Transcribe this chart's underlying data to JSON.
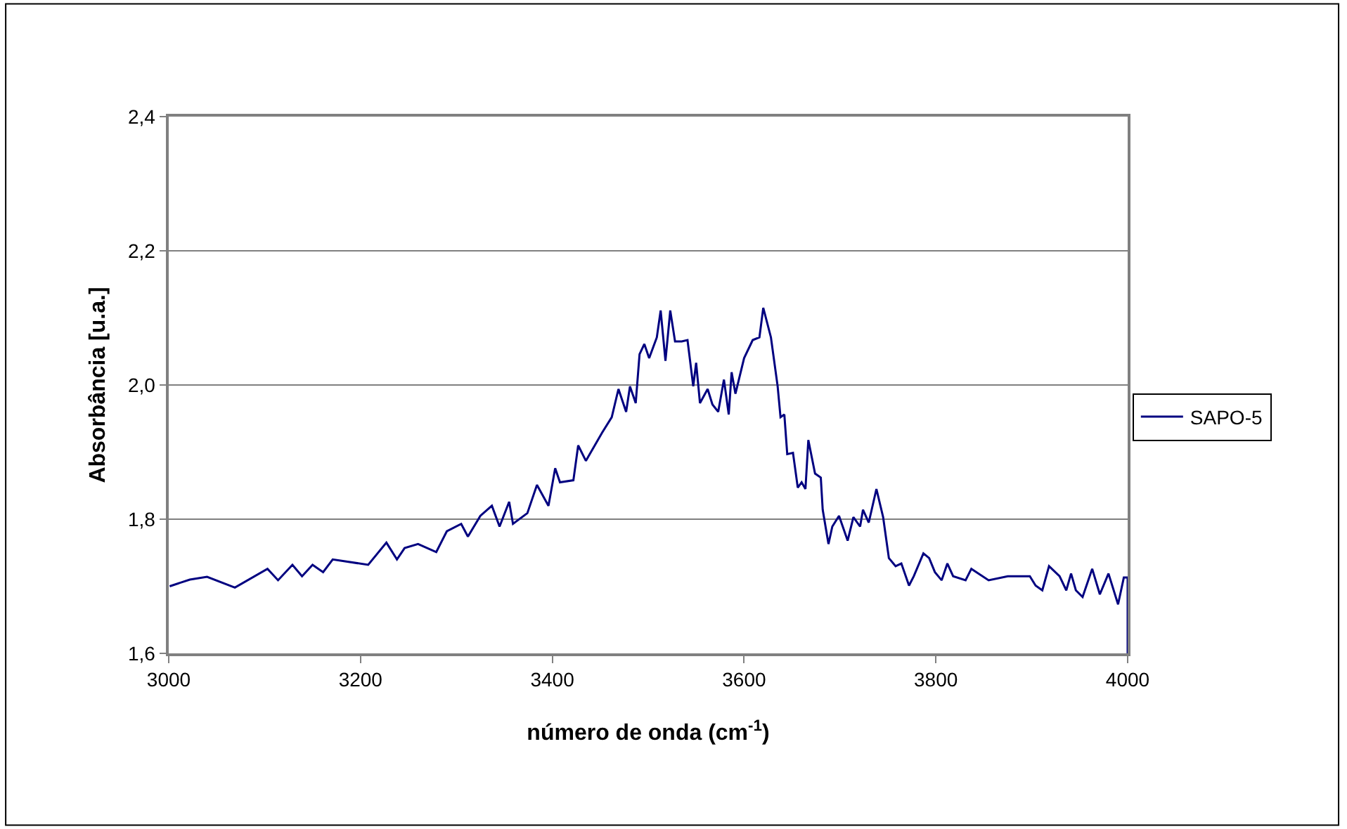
{
  "chart_data": {
    "type": "line",
    "xlabel": "número de onda (cm$^{-1}$)",
    "ylabel": "Absorbância [u.a.]",
    "x": [
      3001,
      3022,
      3040,
      3069,
      3103,
      3114,
      3129,
      3139,
      3150,
      3161,
      3171,
      3208,
      3227,
      3238,
      3246,
      3260,
      3279,
      3290,
      3305,
      3312,
      3325,
      3337,
      3345,
      3355,
      3359,
      3374,
      3384,
      3396,
      3403,
      3408,
      3422,
      3427,
      3435,
      3452,
      3462,
      3469,
      3477,
      3481,
      3487,
      3491,
      3496,
      3501,
      3509,
      3513,
      3518,
      3523,
      3528,
      3535,
      3541,
      3547,
      3550,
      3554,
      3562,
      3567,
      3573,
      3579,
      3584,
      3587,
      3591,
      3600,
      3609,
      3616,
      3620,
      3628,
      3635,
      3638,
      3642,
      3645,
      3651,
      3656,
      3660,
      3664,
      3667,
      3674,
      3680,
      3682,
      3688,
      3692,
      3699,
      3708,
      3714,
      3721,
      3724,
      3730,
      3738,
      3745,
      3751,
      3758,
      3764,
      3772,
      3777,
      3787,
      3793,
      3799,
      3806,
      3812,
      3818,
      3831,
      3837,
      3855,
      3875,
      3898,
      3904,
      3911,
      3918,
      3929,
      3936,
      3941,
      3946,
      3953,
      3963,
      3971,
      3980,
      3990,
      3996,
      4000,
      4000
    ],
    "series": [
      {
        "name": "SAPO-5",
        "color": "#000080",
        "values": [
          1.7,
          1.71,
          1.714,
          1.698,
          1.726,
          1.709,
          1.732,
          1.715,
          1.732,
          1.721,
          1.74,
          1.732,
          1.765,
          1.74,
          1.757,
          1.763,
          1.751,
          1.782,
          1.793,
          1.774,
          1.805,
          1.82,
          1.789,
          1.826,
          1.793,
          1.809,
          1.851,
          1.82,
          1.876,
          1.855,
          1.858,
          1.91,
          1.887,
          1.929,
          1.952,
          1.994,
          1.96,
          1.998,
          1.973,
          2.046,
          2.061,
          2.04,
          2.071,
          2.111,
          2.036,
          2.111,
          2.065,
          2.065,
          2.067,
          1.998,
          2.033,
          1.973,
          1.994,
          1.971,
          1.96,
          2.008,
          1.956,
          2.019,
          1.987,
          2.04,
          2.067,
          2.071,
          2.115,
          2.071,
          1.998,
          1.952,
          1.956,
          1.897,
          1.899,
          1.847,
          1.855,
          1.845,
          1.918,
          1.868,
          1.862,
          1.814,
          1.763,
          1.789,
          1.805,
          1.768,
          1.803,
          1.789,
          1.814,
          1.795,
          1.845,
          1.803,
          1.742,
          1.73,
          1.734,
          1.701,
          1.715,
          1.749,
          1.742,
          1.721,
          1.709,
          1.734,
          1.715,
          1.709,
          1.726,
          1.709,
          1.715,
          1.715,
          1.701,
          1.694,
          1.73,
          1.715,
          1.694,
          1.719,
          1.694,
          1.684,
          1.726,
          1.688,
          1.719,
          1.673,
          1.713,
          1.713,
          1.6
        ]
      }
    ],
    "xlim": [
      3000,
      4000
    ],
    "xticks": [
      3000,
      3200,
      3400,
      3600,
      3800,
      4000
    ],
    "ylim": [
      1.6,
      2.4
    ],
    "yticks": [
      {
        "value": 1.6,
        "label": "1,6"
      },
      {
        "value": 1.8,
        "label": "1,8"
      },
      {
        "value": 2.0,
        "label": "2,0"
      },
      {
        "value": 2.2,
        "label": "2,2"
      },
      {
        "value": 2.4,
        "label": "2,4"
      }
    ],
    "grid": "y",
    "legend": "right",
    "marker": "none",
    "line_style": "solid"
  }
}
